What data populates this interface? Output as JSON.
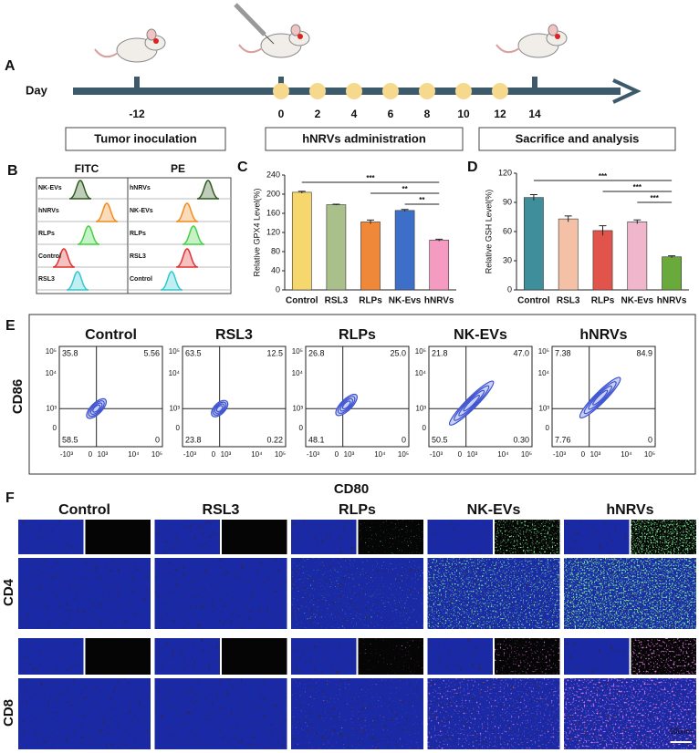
{
  "panel_a": {
    "label": "A",
    "axis_label": "Day",
    "days": [
      "-12",
      "0",
      "2",
      "4",
      "6",
      "8",
      "10",
      "12",
      "14"
    ],
    "phases": [
      "Tumor inoculation",
      "hNRVs administration",
      "Sacrifice and analysis"
    ]
  },
  "panel_b": {
    "label": "B",
    "columns": [
      {
        "title": "FITC",
        "rows": [
          {
            "label": "NK-EVs",
            "color": "#2f5a1e"
          },
          {
            "label": "hNRVs",
            "color": "#f08a1e"
          },
          {
            "label": "RLPs",
            "color": "#44d044"
          },
          {
            "label": "Control",
            "color": "#e03030"
          },
          {
            "label": "RSL3",
            "color": "#30c8d0"
          }
        ]
      },
      {
        "title": "PE",
        "rows": [
          {
            "label": "hNRVs",
            "color": "#2f5a1e"
          },
          {
            "label": "NK-EVs",
            "color": "#f08a1e"
          },
          {
            "label": "RLPs",
            "color": "#44d044"
          },
          {
            "label": "RSL3",
            "color": "#e03030"
          },
          {
            "label": "Control",
            "color": "#30c8d0"
          }
        ]
      }
    ]
  },
  "chart_data": [
    {
      "type": "bar",
      "label": "C",
      "y_label": "Relative GPX4 Level(%)",
      "categories": [
        "Control",
        "RSL3",
        "RLPs",
        "NK-Evs",
        "hNRVs"
      ],
      "values": [
        204,
        178,
        142,
        166,
        104
      ],
      "errors": [
        2,
        1,
        4,
        2,
        2
      ],
      "colors": [
        "#f5d76e",
        "#a9c08a",
        "#f0883a",
        "#3d6fc8",
        "#f59ac0"
      ],
      "ylim": [
        0,
        240
      ],
      "yticks": [
        0,
        40,
        80,
        120,
        160,
        200,
        240
      ],
      "annotations": [
        "***",
        "**",
        "**"
      ]
    },
    {
      "type": "bar",
      "label": "D",
      "y_label": "Relative GSH Level(%)",
      "categories": [
        "Control",
        "RSL3",
        "RLPs",
        "NK-Evs",
        "hNRVs"
      ],
      "values": [
        95,
        73,
        61,
        70,
        34
      ],
      "errors": [
        3,
        3,
        5,
        2,
        1
      ],
      "colors": [
        "#3e8e9c",
        "#f4c0a6",
        "#e0544c",
        "#f0b6cc",
        "#6aaa3c"
      ],
      "ylim": [
        0,
        120
      ],
      "yticks": [
        0,
        30,
        60,
        90,
        120
      ],
      "annotations": [
        "***",
        "***",
        "***"
      ]
    }
  ],
  "panel_e": {
    "label": "E",
    "x_label": "CD80",
    "y_label": "CD86",
    "xticks": [
      "-10³",
      "0",
      "10³",
      "10⁴",
      "10⁵"
    ],
    "yticks": [
      "10⁵",
      "10⁴",
      "10³",
      "0"
    ],
    "plots": [
      {
        "title": "Control",
        "quadrants": [
          "35.8",
          "5.56",
          "58.5",
          "0"
        ]
      },
      {
        "title": "RSL3",
        "quadrants": [
          "63.5",
          "12.5",
          "23.8",
          "0.22"
        ]
      },
      {
        "title": "RLPs",
        "quadrants": [
          "26.8",
          "25.0",
          "48.1",
          "0"
        ]
      },
      {
        "title": "NK-EVs",
        "quadrants": [
          "21.8",
          "47.0",
          "50.5",
          "0.30"
        ]
      },
      {
        "title": "hNRVs",
        "quadrants": [
          "7.38",
          "84.9",
          "7.76",
          "0"
        ]
      }
    ]
  },
  "panel_f": {
    "label": "F",
    "columns": [
      "Control",
      "RSL3",
      "RLPs",
      "NK-EVs",
      "hNRVs"
    ],
    "rows": [
      "CD4",
      "CD8"
    ],
    "scale_bar": "100μm"
  }
}
